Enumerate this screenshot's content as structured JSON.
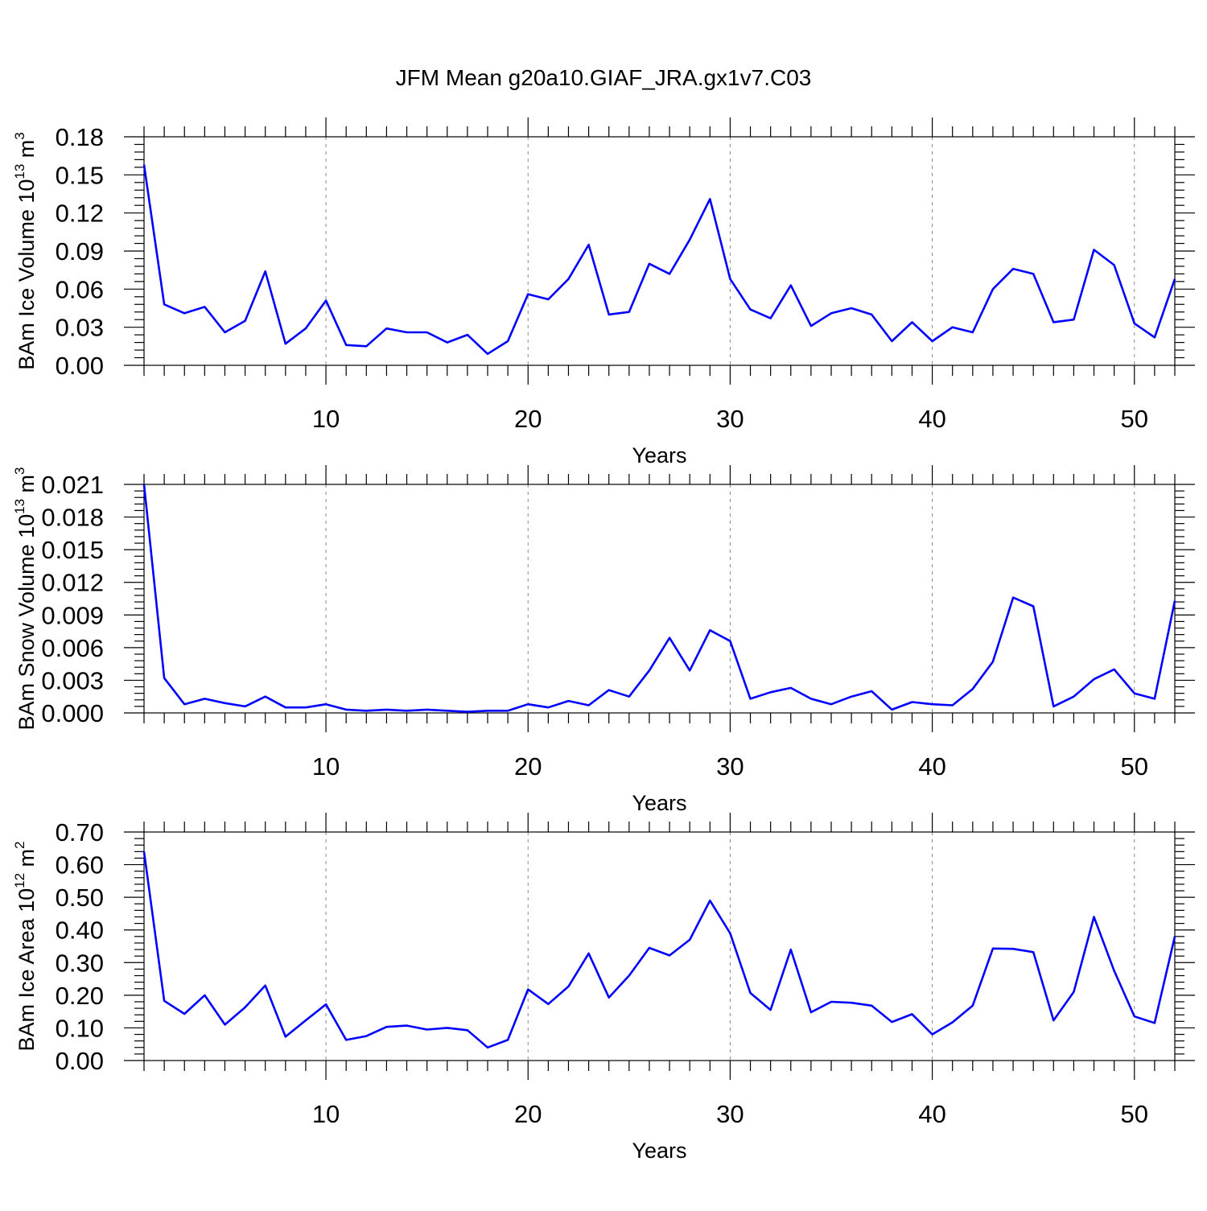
{
  "figure": {
    "title": "JFM Mean g20a10.GIAF_JRA.gx1v7.C03",
    "line_color": "#0000ff"
  },
  "chart_data": [
    {
      "type": "line",
      "title": "",
      "xlabel": "Years",
      "ylabel_prefix": "BAm Ice Volume 10",
      "ylabel_exp": "13",
      "ylabel_unit": " m",
      "ylabel_unit_exp": "3",
      "xlim": [
        1,
        52
      ],
      "ylim": [
        0,
        0.18
      ],
      "xticks": [
        10,
        20,
        30,
        40,
        50
      ],
      "xtick_labels": [
        "10",
        "20",
        "30",
        "40",
        "50"
      ],
      "yticks": [
        0,
        0.03,
        0.06,
        0.09,
        0.12,
        0.15,
        0.18
      ],
      "ytick_labels": [
        "0.00",
        "0.03",
        "0.06",
        "0.09",
        "0.12",
        "0.15",
        "0.18"
      ],
      "grid": "vertical dashed at x ticks",
      "x": [
        1,
        2,
        3,
        4,
        5,
        6,
        7,
        8,
        9,
        10,
        11,
        12,
        13,
        14,
        15,
        16,
        17,
        18,
        19,
        20,
        21,
        22,
        23,
        24,
        25,
        26,
        27,
        28,
        29,
        30,
        31,
        32,
        33,
        34,
        35,
        36,
        37,
        38,
        39,
        40,
        41,
        42,
        43,
        44,
        45,
        46,
        47,
        48,
        49,
        50,
        51,
        52
      ],
      "series": [
        {
          "values": [
            0.158,
            0.048,
            0.041,
            0.046,
            0.026,
            0.035,
            0.074,
            0.017,
            0.029,
            0.051,
            0.016,
            0.015,
            0.029,
            0.026,
            0.026,
            0.018,
            0.024,
            0.009,
            0.019,
            0.056,
            0.052,
            0.068,
            0.095,
            0.04,
            0.042,
            0.08,
            0.072,
            0.099,
            0.131,
            0.068,
            0.044,
            0.037,
            0.063,
            0.031,
            0.041,
            0.045,
            0.04,
            0.019,
            0.034,
            0.019,
            0.03,
            0.026,
            0.06,
            0.076,
            0.072,
            0.034,
            0.036,
            0.091,
            0.079,
            0.033,
            0.022,
            0.068
          ]
        }
      ]
    },
    {
      "type": "line",
      "title": "",
      "xlabel": "Years",
      "ylabel_prefix": "BAm Snow Volume 10",
      "ylabel_exp": "13",
      "ylabel_unit": " m",
      "ylabel_unit_exp": "3",
      "xlim": [
        1,
        52
      ],
      "ylim": [
        0,
        0.021
      ],
      "xticks": [
        10,
        20,
        30,
        40,
        50
      ],
      "xtick_labels": [
        "10",
        "20",
        "30",
        "40",
        "50"
      ],
      "yticks": [
        0,
        0.003,
        0.006,
        0.009,
        0.012,
        0.015,
        0.018,
        0.021
      ],
      "ytick_labels": [
        "0.000",
        "0.003",
        "0.006",
        "0.009",
        "0.012",
        "0.015",
        "0.018",
        "0.021"
      ],
      "grid": "vertical dashed at x ticks",
      "x": [
        1,
        2,
        3,
        4,
        5,
        6,
        7,
        8,
        9,
        10,
        11,
        12,
        13,
        14,
        15,
        16,
        17,
        18,
        19,
        20,
        21,
        22,
        23,
        24,
        25,
        26,
        27,
        28,
        29,
        30,
        31,
        32,
        33,
        34,
        35,
        36,
        37,
        38,
        39,
        40,
        41,
        42,
        43,
        44,
        45,
        46,
        47,
        48,
        49,
        50,
        51,
        52
      ],
      "series": [
        {
          "values": [
            0.021,
            0.0032,
            0.0008,
            0.0013,
            0.0009,
            0.0006,
            0.0015,
            0.0005,
            0.0005,
            0.0008,
            0.0003,
            0.0002,
            0.0003,
            0.0002,
            0.0003,
            0.0002,
            0.0001,
            0.0002,
            0.0002,
            0.0008,
            0.0005,
            0.0011,
            0.0007,
            0.0021,
            0.0015,
            0.0039,
            0.0069,
            0.0039,
            0.0076,
            0.0066,
            0.0013,
            0.0019,
            0.0023,
            0.0013,
            0.0008,
            0.0015,
            0.002,
            0.0003,
            0.001,
            0.0008,
            0.0007,
            0.0022,
            0.0047,
            0.0106,
            0.0098,
            0.0006,
            0.0015,
            0.0031,
            0.004,
            0.0018,
            0.0013,
            0.0103
          ]
        }
      ]
    },
    {
      "type": "line",
      "title": "",
      "xlabel": "Years",
      "ylabel_prefix": "BAm Ice Area 10",
      "ylabel_exp": "12",
      "ylabel_unit": " m",
      "ylabel_unit_exp": "2",
      "xlim": [
        1,
        52
      ],
      "ylim": [
        0,
        0.7
      ],
      "xticks": [
        10,
        20,
        30,
        40,
        50
      ],
      "xtick_labels": [
        "10",
        "20",
        "30",
        "40",
        "50"
      ],
      "yticks": [
        0,
        0.1,
        0.2,
        0.3,
        0.4,
        0.5,
        0.6,
        0.7
      ],
      "ytick_labels": [
        "0.00",
        "0.10",
        "0.20",
        "0.30",
        "0.40",
        "0.50",
        "0.60",
        "0.70"
      ],
      "grid": "vertical dashed at x ticks",
      "x": [
        1,
        2,
        3,
        4,
        5,
        6,
        7,
        8,
        9,
        10,
        11,
        12,
        13,
        14,
        15,
        16,
        17,
        18,
        19,
        20,
        21,
        22,
        23,
        24,
        25,
        26,
        27,
        28,
        29,
        30,
        31,
        32,
        33,
        34,
        35,
        36,
        37,
        38,
        39,
        40,
        41,
        42,
        43,
        44,
        45,
        46,
        47,
        48,
        49,
        50,
        51,
        52
      ],
      "series": [
        {
          "values": [
            0.64,
            0.183,
            0.143,
            0.2,
            0.11,
            0.163,
            0.23,
            0.073,
            0.123,
            0.172,
            0.063,
            0.075,
            0.103,
            0.107,
            0.095,
            0.1,
            0.093,
            0.04,
            0.063,
            0.218,
            0.173,
            0.227,
            0.328,
            0.193,
            0.26,
            0.345,
            0.322,
            0.37,
            0.49,
            0.39,
            0.207,
            0.155,
            0.34,
            0.148,
            0.18,
            0.177,
            0.168,
            0.118,
            0.142,
            0.08,
            0.117,
            0.168,
            0.343,
            0.342,
            0.332,
            0.123,
            0.21,
            0.44,
            0.275,
            0.135,
            0.115,
            0.38
          ]
        }
      ]
    }
  ]
}
